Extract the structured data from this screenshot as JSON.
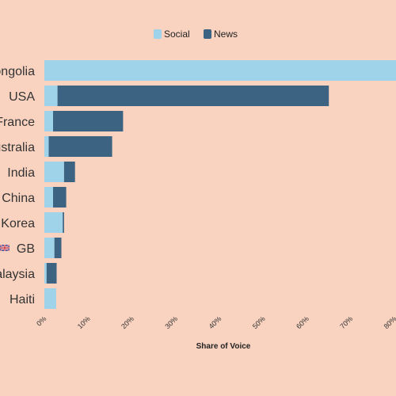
{
  "chart_data": {
    "type": "bar",
    "orientation": "horizontal",
    "stacked": true,
    "categories": [
      "Mongolia",
      "USA",
      "France",
      "Australia",
      "India",
      "China",
      "Korea",
      "GB",
      "Malaysia",
      "Haiti"
    ],
    "series": [
      {
        "name": "Social",
        "color": "#9ed3ea",
        "values": [
          82,
          3,
          2,
          1,
          4.5,
          2,
          4.2,
          2.3,
          0.5,
          2.7
        ]
      },
      {
        "name": "News",
        "color": "#3c6381",
        "values": [
          0,
          62,
          16,
          14.5,
          2.5,
          3,
          0.3,
          1.6,
          2.3,
          0
        ]
      }
    ],
    "xlabel": "Share of Voice",
    "xticks": [
      "0%",
      "10%",
      "20%",
      "30%",
      "40%",
      "50%",
      "60%",
      "70%",
      "80%"
    ],
    "xlim": [
      0,
      80
    ],
    "legend_position": "top",
    "gb_flag_icon": "uk-flag-icon"
  }
}
